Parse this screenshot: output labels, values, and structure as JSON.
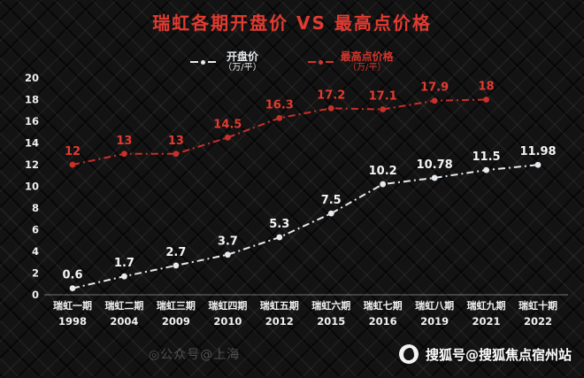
{
  "title": "瑞虹各期开盘价 VS 最高点价格",
  "legend": [
    {
      "label": "开盘价",
      "unit": "（万/平）",
      "color": "#e9ecef"
    },
    {
      "label": "最高点价格",
      "unit": "（万/平）",
      "color": "#d3362c"
    }
  ],
  "watermark": {
    "faint_text": "◎公众号@上海",
    "sohu_text": "搜狐号@搜狐焦点宿州站"
  },
  "chart_data": {
    "type": "line",
    "title": "瑞虹各期开盘价 VS 最高点价格",
    "categories": [
      "瑞虹一期",
      "瑞虹二期",
      "瑞虹三期",
      "瑞虹四期",
      "瑞虹五期",
      "瑞虹六期",
      "瑞虹七期",
      "瑞虹八期",
      "瑞虹九期",
      "瑞虹十期"
    ],
    "years": [
      "1998",
      "2004",
      "2009",
      "2010",
      "2012",
      "2015",
      "2016",
      "2019",
      "2021",
      "2022"
    ],
    "series": [
      {
        "name": "开盘价（万/平）",
        "color": "#e6e9ed",
        "label_color": "#f4f5f7",
        "values": [
          0.6,
          1.7,
          2.7,
          3.7,
          5.3,
          7.5,
          10.2,
          10.78,
          11.5,
          11.98
        ],
        "labels": [
          "0.6",
          "1.7",
          "2.7",
          "3.7",
          "5.3",
          "7.5",
          "10.2",
          "10.78",
          "11.5",
          "11.98"
        ]
      },
      {
        "name": "最高点价格（万/平）",
        "color": "#c9302a",
        "label_color": "#e23b31",
        "values": [
          12,
          13,
          13,
          14.5,
          16.3,
          17.2,
          17.1,
          17.9,
          18,
          null
        ],
        "labels": [
          "12",
          "13",
          "13",
          "14.5",
          "16.3",
          "17.2",
          "17.1",
          "17.9",
          "18",
          ""
        ]
      }
    ],
    "ylim": [
      0,
      20
    ],
    "yticks": [
      0,
      2,
      4,
      6,
      8,
      10,
      12,
      14,
      16,
      18,
      20
    ],
    "grid": false,
    "legend_position": "top"
  }
}
